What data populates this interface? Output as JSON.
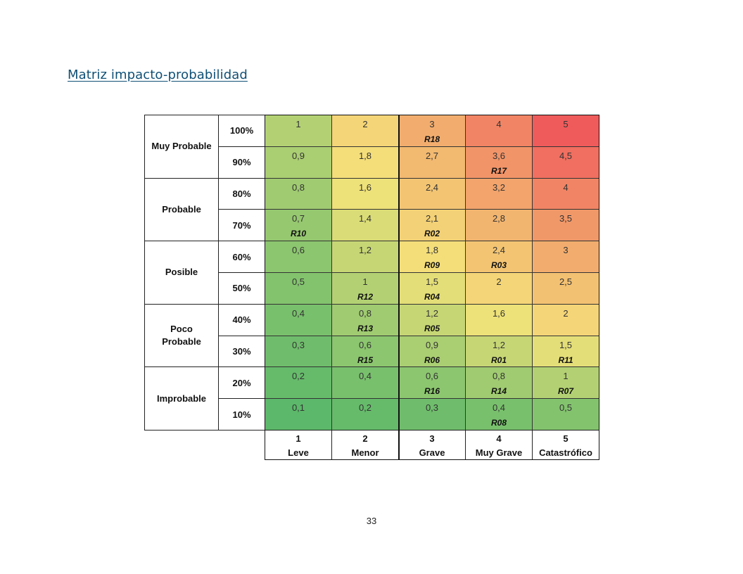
{
  "page": {
    "heading": "Matriz impacto-probabilidad",
    "page_number": "33"
  },
  "matrix": {
    "probability_groups": [
      {
        "label": "Muy Probable",
        "rows": [
          "100%",
          "90%"
        ]
      },
      {
        "label": "Probable",
        "rows": [
          "80%",
          "70%"
        ]
      },
      {
        "label": "Posible",
        "rows": [
          "60%",
          "50%"
        ]
      },
      {
        "label": "Poco Probable",
        "rows": [
          "40%",
          "30%"
        ]
      },
      {
        "label": "Improbable",
        "rows": [
          "20%",
          "10%"
        ]
      }
    ],
    "impact_levels": [
      {
        "number": "1",
        "name": "Leve"
      },
      {
        "number": "2",
        "name": "Menor"
      },
      {
        "number": "3",
        "name": "Grave"
      },
      {
        "number": "4",
        "name": "Muy Grave"
      },
      {
        "number": "5",
        "name": "Catastrófico"
      }
    ],
    "cells": [
      [
        {
          "value": "1",
          "risk": ""
        },
        {
          "value": "2",
          "risk": ""
        },
        {
          "value": "3",
          "risk": "R18"
        },
        {
          "value": "4",
          "risk": ""
        },
        {
          "value": "5",
          "risk": ""
        }
      ],
      [
        {
          "value": "0,9",
          "risk": ""
        },
        {
          "value": "1,8",
          "risk": ""
        },
        {
          "value": "2,7",
          "risk": ""
        },
        {
          "value": "3,6",
          "risk": "R17"
        },
        {
          "value": "4,5",
          "risk": ""
        }
      ],
      [
        {
          "value": "0,8",
          "risk": ""
        },
        {
          "value": "1,6",
          "risk": ""
        },
        {
          "value": "2,4",
          "risk": ""
        },
        {
          "value": "3,2",
          "risk": ""
        },
        {
          "value": "4",
          "risk": ""
        }
      ],
      [
        {
          "value": "0,7",
          "risk": "R10"
        },
        {
          "value": "1,4",
          "risk": ""
        },
        {
          "value": "2,1",
          "risk": "R02"
        },
        {
          "value": "2,8",
          "risk": ""
        },
        {
          "value": "3,5",
          "risk": ""
        }
      ],
      [
        {
          "value": "0,6",
          "risk": ""
        },
        {
          "value": "1,2",
          "risk": ""
        },
        {
          "value": "1,8",
          "risk": "R09"
        },
        {
          "value": "2,4",
          "risk": "R03"
        },
        {
          "value": "3",
          "risk": ""
        }
      ],
      [
        {
          "value": "0,5",
          "risk": ""
        },
        {
          "value": "1",
          "risk": "R12"
        },
        {
          "value": "1,5",
          "risk": "R04"
        },
        {
          "value": "2",
          "risk": ""
        },
        {
          "value": "2,5",
          "risk": ""
        }
      ],
      [
        {
          "value": "0,4",
          "risk": ""
        },
        {
          "value": "0,8",
          "risk": "R13"
        },
        {
          "value": "1,2",
          "risk": "R05"
        },
        {
          "value": "1,6",
          "risk": ""
        },
        {
          "value": "2",
          "risk": ""
        }
      ],
      [
        {
          "value": "0,3",
          "risk": ""
        },
        {
          "value": "0,6",
          "risk": "R15"
        },
        {
          "value": "0,9",
          "risk": "R06"
        },
        {
          "value": "1,2",
          "risk": "R01"
        },
        {
          "value": "1,5",
          "risk": "R11"
        }
      ],
      [
        {
          "value": "0,2",
          "risk": ""
        },
        {
          "value": "0,4",
          "risk": ""
        },
        {
          "value": "0,6",
          "risk": "R16"
        },
        {
          "value": "0,8",
          "risk": "R14"
        },
        {
          "value": "1",
          "risk": "R07"
        }
      ],
      [
        {
          "value": "0,1",
          "risk": ""
        },
        {
          "value": "0,2",
          "risk": ""
        },
        {
          "value": "0,3",
          "risk": ""
        },
        {
          "value": "0,4",
          "risk": "R08"
        },
        {
          "value": "0,5",
          "risk": ""
        }
      ]
    ],
    "scale_colors": {
      "low": "#5cb86a",
      "mid": "#f4e37a",
      "high": "#ef5b5b"
    }
  }
}
